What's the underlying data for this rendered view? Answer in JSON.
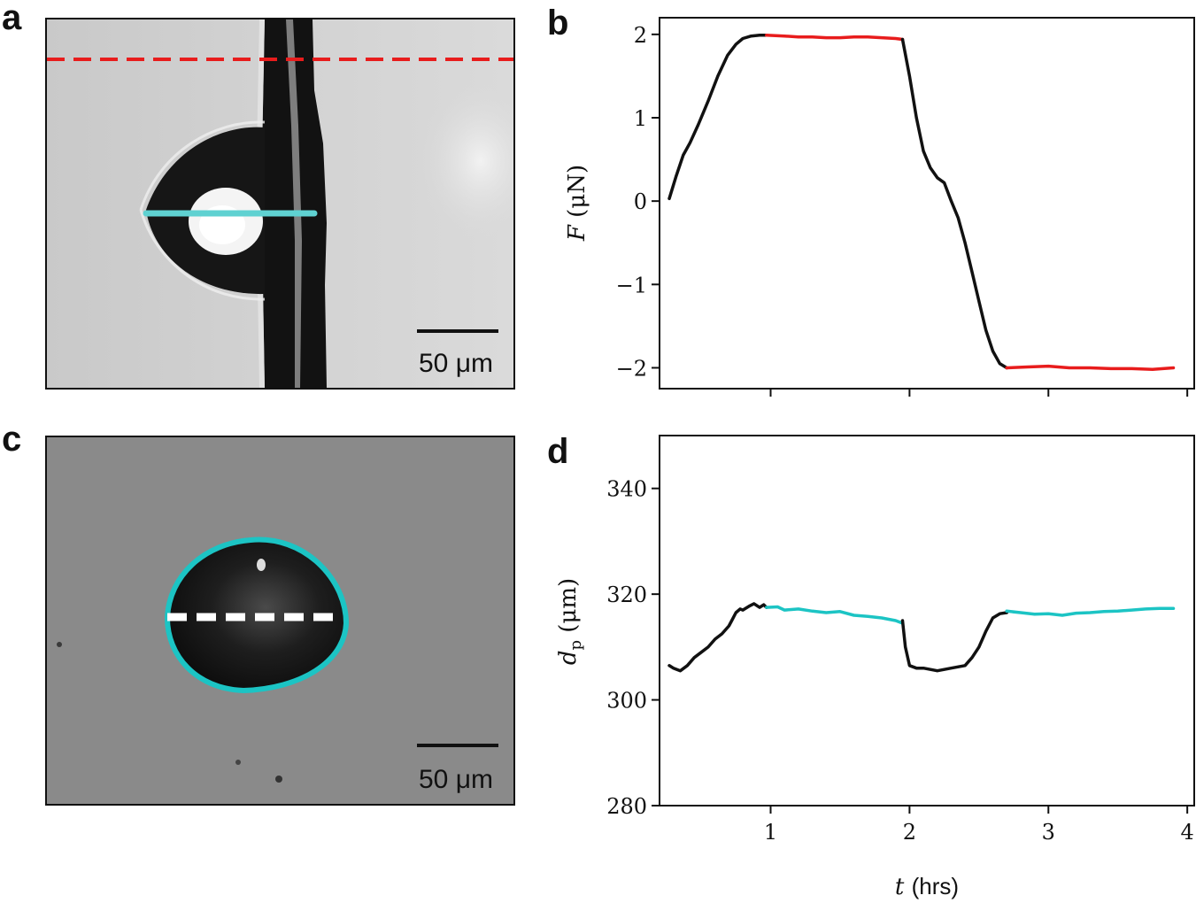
{
  "panels": {
    "a": {
      "letter": "a",
      "scale_bar": "50 μm"
    },
    "b": {
      "letter": "b"
    },
    "c": {
      "letter": "c",
      "scale_bar": "50 μm"
    },
    "d": {
      "letter": "d"
    }
  },
  "colors": {
    "hold": "#e81c1c",
    "cyan": "#1cc4c4",
    "line": "#111111",
    "aqua_line": "#5fd1d1"
  },
  "chart_data": [
    {
      "id": "b",
      "type": "line",
      "xlabel": "",
      "ylabel_var": "F",
      "ylabel_unit": "(μN)",
      "xlim": [
        0.2,
        4.05
      ],
      "ylim": [
        -2.25,
        2.2
      ],
      "x_ticks": [
        1,
        2,
        3,
        4
      ],
      "y_ticks": [
        2,
        1,
        0,
        -1,
        -2
      ],
      "y_tick_labels": [
        "2",
        "1",
        "0",
        "−1",
        "−2"
      ],
      "series": [
        {
          "name": "ramp-up",
          "color": "#111111",
          "x": [
            0.27,
            0.32,
            0.37,
            0.42,
            0.48,
            0.55,
            0.62,
            0.69,
            0.75,
            0.8,
            0.86,
            0.92,
            0.97
          ],
          "y": [
            0.03,
            0.3,
            0.55,
            0.7,
            0.92,
            1.2,
            1.5,
            1.75,
            1.88,
            1.95,
            1.98,
            1.99,
            1.99
          ]
        },
        {
          "name": "hold-positive",
          "color": "#e81c1c",
          "x": [
            0.97,
            1.1,
            1.2,
            1.3,
            1.4,
            1.5,
            1.6,
            1.7,
            1.8,
            1.9,
            1.95
          ],
          "y": [
            1.99,
            1.98,
            1.97,
            1.97,
            1.96,
            1.96,
            1.97,
            1.97,
            1.96,
            1.95,
            1.94
          ]
        },
        {
          "name": "ramp-down",
          "color": "#111111",
          "x": [
            1.95,
            2.0,
            2.05,
            2.1,
            2.15,
            2.2,
            2.25,
            2.3,
            2.35,
            2.4,
            2.45,
            2.5,
            2.55,
            2.6,
            2.65,
            2.7
          ],
          "y": [
            1.94,
            1.5,
            1.0,
            0.6,
            0.4,
            0.28,
            0.22,
            0.0,
            -0.2,
            -0.5,
            -0.85,
            -1.2,
            -1.55,
            -1.8,
            -1.95,
            -2.0
          ]
        },
        {
          "name": "hold-negative",
          "color": "#e81c1c",
          "x": [
            2.7,
            2.85,
            3.0,
            3.15,
            3.3,
            3.45,
            3.6,
            3.75,
            3.9
          ],
          "y": [
            -2.0,
            -1.99,
            -1.98,
            -2.0,
            -2.0,
            -2.01,
            -2.01,
            -2.02,
            -2.0
          ]
        }
      ]
    },
    {
      "id": "d",
      "type": "line",
      "xlabel_var": "t",
      "xlabel_unit": "(hrs)",
      "ylabel_var": "d",
      "ylabel_sub": "p",
      "ylabel_unit": "(μm)",
      "xlim": [
        0.2,
        4.05
      ],
      "ylim": [
        280,
        350
      ],
      "x_ticks": [
        1,
        2,
        3,
        4
      ],
      "x_tick_labels": [
        "1",
        "2",
        "3",
        "4"
      ],
      "y_ticks": [
        340,
        320,
        300,
        280
      ],
      "y_tick_labels": [
        "340",
        "320",
        "300",
        "280"
      ],
      "series": [
        {
          "name": "growth-1",
          "color": "#111111",
          "x": [
            0.27,
            0.3,
            0.35,
            0.4,
            0.45,
            0.5,
            0.55,
            0.6,
            0.65,
            0.7,
            0.72,
            0.75,
            0.78,
            0.8,
            0.85,
            0.88,
            0.92,
            0.95,
            0.97
          ],
          "y": [
            306.5,
            306.0,
            305.5,
            306.5,
            308.0,
            309.0,
            310.0,
            311.5,
            312.5,
            314.0,
            315.0,
            316.5,
            317.2,
            317.0,
            317.8,
            318.2,
            317.5,
            318.0,
            317.5
          ]
        },
        {
          "name": "plateau-1",
          "color": "#1cc4c4",
          "x": [
            0.97,
            1.05,
            1.1,
            1.2,
            1.3,
            1.4,
            1.5,
            1.6,
            1.7,
            1.8,
            1.9,
            1.95
          ],
          "y": [
            317.5,
            317.6,
            317.0,
            317.2,
            316.8,
            316.5,
            316.7,
            316.0,
            315.8,
            315.5,
            315.0,
            314.5
          ]
        },
        {
          "name": "shrink-grow",
          "color": "#111111",
          "x": [
            1.95,
            1.97,
            2.0,
            2.05,
            2.1,
            2.2,
            2.3,
            2.4,
            2.45,
            2.5,
            2.55,
            2.6,
            2.65,
            2.7
          ],
          "y": [
            315.0,
            310.0,
            306.5,
            306.0,
            306.0,
            305.5,
            306.0,
            306.5,
            308.0,
            310.0,
            313.0,
            315.5,
            316.3,
            316.5
          ]
        },
        {
          "name": "plateau-2",
          "color": "#1cc4c4",
          "x": [
            2.7,
            2.8,
            2.9,
            3.0,
            3.1,
            3.2,
            3.3,
            3.4,
            3.5,
            3.6,
            3.7,
            3.8,
            3.9
          ],
          "y": [
            316.8,
            316.5,
            316.2,
            316.3,
            316.0,
            316.4,
            316.5,
            316.7,
            316.8,
            317.0,
            317.2,
            317.3,
            317.3
          ]
        }
      ]
    }
  ]
}
